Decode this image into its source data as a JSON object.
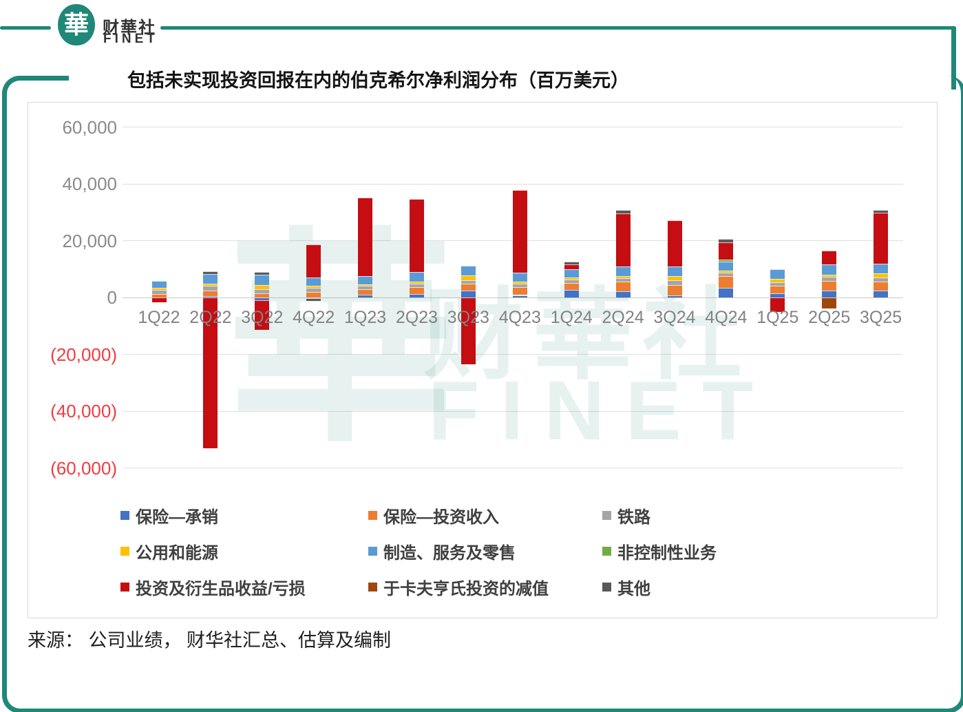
{
  "header": {
    "brand_cn": "财華社",
    "brand_en": "FINET",
    "logo_char": "華"
  },
  "title": "包括未实现投资回报在内的伯克希尔净利润分布（百万美元）",
  "source": "来源： 公司业绩， 财华社汇总、估算及编制",
  "watermark": {
    "seal_char": "華",
    "text_cn": "财華社",
    "text_en": "FINET"
  },
  "colors": {
    "brand_teal": "#1F8878",
    "negative_tick": "#f23b41",
    "positive_tick": "#8a8a8a",
    "grid": "#dedede"
  },
  "chart_data": {
    "type": "bar",
    "stacked": true,
    "title": "包括未实现投资回报在内的伯克希尔净利润分布（百万美元）",
    "unit": "百万美元",
    "xlabel": "",
    "ylabel": "",
    "ylim": [
      -60000,
      60000
    ],
    "grid": true,
    "legend_position": "bottom",
    "y_ticks": [
      {
        "label": "60,000",
        "value": 60000
      },
      {
        "label": "40,000",
        "value": 40000
      },
      {
        "label": "20,000",
        "value": 20000
      },
      {
        "label": "0",
        "value": 0
      },
      {
        "label": "(20,000)",
        "value": -20000
      },
      {
        "label": "(40,000)",
        "value": -40000
      },
      {
        "label": "(60,000)",
        "value": -60000
      }
    ],
    "categories": [
      "1Q22",
      "2Q22",
      "3Q22",
      "4Q22",
      "1Q23",
      "2Q23",
      "3Q23",
      "4Q23",
      "1Q24",
      "2Q24",
      "3Q24",
      "4Q24",
      "1Q25",
      "2Q25",
      "3Q25"
    ],
    "series": [
      {
        "name": "保险—承销",
        "color": "#4472C4",
        "values": [
          47,
          581,
          -962,
          -244,
          911,
          1247,
          2422,
          848,
          2598,
          2263,
          750,
          3409,
          1340,
          2479,
          2370
        ]
      },
      {
        "name": "保险—投资收入",
        "color": "#ED7D31",
        "values": [
          1170,
          1910,
          1408,
          2000,
          1969,
          2369,
          2468,
          2759,
          2598,
          3320,
          3660,
          4088,
          2893,
          3370,
          3200
        ]
      },
      {
        "name": "铁路",
        "color": "#A5A5A5",
        "values": [
          1371,
          1663,
          1442,
          1469,
          1250,
          1262,
          1223,
          1355,
          1143,
          1227,
          1538,
          1245,
          1214,
          1469,
          1400
        ]
      },
      {
        "name": "公用和能源",
        "color": "#FFC000",
        "values": [
          750,
          766,
          1585,
          739,
          416,
          624,
          1699,
          632,
          717,
          655,
          1631,
          706,
          1097,
          702,
          1600
        ]
      },
      {
        "name": "制造、服务及零售",
        "color": "#5B9BD5",
        "values": [
          2380,
          3300,
          3500,
          2900,
          3065,
          3360,
          3340,
          3140,
          3000,
          3400,
          3300,
          3100,
          3500,
          3500,
          3200
        ]
      },
      {
        "name": "非控制性业务",
        "color": "#70AD47",
        "values": [
          0,
          0,
          0,
          0,
          0,
          0,
          0,
          0,
          0,
          0,
          0,
          800,
          0,
          0,
          0
        ]
      },
      {
        "name": "投资及衍生品收益/亏损",
        "color": "#C40E12",
        "values": [
          -1580,
          -53038,
          -10449,
          11461,
          27439,
          25869,
          -23528,
          29093,
          1480,
          18750,
          16200,
          6000,
          -5038,
          4970,
          18000
        ]
      },
      {
        "name": "于卡夫亨氏投资的减值",
        "color": "#9E480E",
        "values": [
          0,
          0,
          0,
          0,
          0,
          0,
          0,
          0,
          0,
          0,
          0,
          0,
          0,
          -3760,
          0
        ]
      },
      {
        "name": "其他",
        "color": "#595959",
        "values": [
          0,
          1000,
          1000,
          -1000,
          0,
          0,
          0,
          0,
          1000,
          1200,
          0,
          1200,
          0,
          0,
          1000
        ]
      }
    ]
  }
}
